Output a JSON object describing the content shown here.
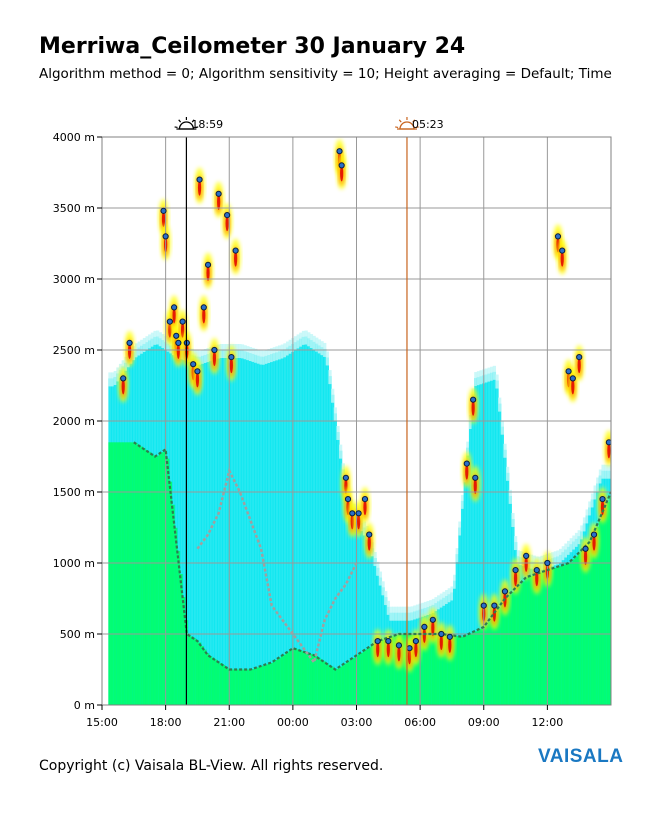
{
  "header": {
    "title": "Merriwa_Ceilometer 30 January 24",
    "subtitle": "Algorithm method = 0; Algorithm sensitivity = 10; Height averaging = Default; Time"
  },
  "footer": {
    "copyright": "Copyright (c) Vaisala BL-View. All rights reserved.",
    "logo_text": "VAISALA"
  },
  "chart_data": {
    "type": "heatmap",
    "y_unit": "m",
    "ylim": [
      0,
      4000
    ],
    "y_ticks": [
      {
        "value": 4000,
        "label": "4000 m"
      },
      {
        "value": 3500,
        "label": "3500 m"
      },
      {
        "value": 3000,
        "label": "3000 m"
      },
      {
        "value": 2500,
        "label": "2500 m"
      },
      {
        "value": 2000,
        "label": "2000 m"
      },
      {
        "value": 1500,
        "label": "1500 m"
      },
      {
        "value": 1000,
        "label": "1000 m"
      },
      {
        "value": 500,
        "label": "500 m"
      },
      {
        "value": 0,
        "label": "0 m"
      }
    ],
    "x_ticks": [
      {
        "hours": 0,
        "label": "15:00"
      },
      {
        "hours": 3,
        "label": "18:00"
      },
      {
        "hours": 6,
        "label": "21:00"
      },
      {
        "hours": 9,
        "label": "00:00"
      },
      {
        "hours": 12,
        "label": "03:00"
      },
      {
        "hours": 15,
        "label": "06:00"
      },
      {
        "hours": 18,
        "label": "09:00"
      },
      {
        "hours": 21,
        "label": "12:00"
      }
    ],
    "x_range_hours": [
      0,
      24
    ],
    "grid": true,
    "markers": [
      {
        "name": "sunset",
        "label": "18:59",
        "hours": 3.98,
        "color": "#000000"
      },
      {
        "name": "sunrise",
        "label": "05:23",
        "hours": 14.38,
        "color": "#c8641e"
      }
    ],
    "backscatter_colors": [
      "#ffffff",
      "#00e5ee",
      "#00ff66",
      "#ffff00",
      "#ff8800",
      "#e00000"
    ],
    "series": [
      {
        "layer": "aerosol_column_top",
        "hours": [
          0.5,
          1.5,
          2.5,
          3.5,
          4.5,
          5.5,
          6.5,
          7.5,
          8.5,
          9.5,
          10.5,
          11.5,
          12.5,
          13.5,
          14.5,
          15.5,
          16.5,
          17.5,
          18.5,
          19.5,
          20.5,
          21.5,
          22.5,
          23.5
        ],
        "heights_m": [
          2300,
          2500,
          2600,
          2500,
          2450,
          2500,
          2500,
          2450,
          2500,
          2600,
          2500,
          1450,
          1200,
          650,
          650,
          700,
          800,
          2300,
          2350,
          1050,
          1000,
          1050,
          1200,
          1650
        ]
      },
      {
        "layer": "cloud_base_points",
        "hours": [
          1.0,
          1.3,
          2.9,
          3.0,
          3.2,
          3.4,
          3.5,
          3.6,
          3.8,
          4.0,
          4.3,
          4.5,
          4.6,
          4.8,
          5.0,
          5.3,
          5.5,
          5.9,
          6.1,
          6.3,
          11.2,
          11.3,
          11.5,
          11.6,
          11.8,
          12.1,
          12.4,
          12.6,
          13.0,
          13.5,
          14.0,
          14.5,
          14.8,
          15.2,
          15.6,
          16.0,
          16.4,
          17.2,
          17.5,
          17.6,
          18.0,
          18.5,
          19.0,
          19.5,
          20.0,
          20.5,
          21.0,
          21.5,
          21.7,
          22.0,
          22.2,
          22.5,
          22.8,
          23.2,
          23.6,
          23.9
        ],
        "heights_m": [
          2300,
          2550,
          3480,
          3300,
          2700,
          2800,
          2600,
          2550,
          2700,
          2550,
          2400,
          2350,
          3700,
          2800,
          3100,
          2500,
          3600,
          3450,
          2450,
          3200,
          3900,
          3800,
          1600,
          1450,
          1350,
          1350,
          1450,
          1200,
          450,
          450,
          420,
          400,
          450,
          550,
          600,
          500,
          480,
          1700,
          2150,
          1600,
          700,
          700,
          800,
          950,
          1050,
          950,
          1000,
          3300,
          3200,
          2350,
          2300,
          2450,
          1100,
          1200,
          1450,
          1850
        ]
      },
      {
        "layer": "boundary_layer_trace",
        "hours": [
          1.5,
          2.0,
          2.5,
          3.0,
          4.0,
          4.5,
          5.0,
          6.0,
          7.0,
          8.0,
          9.0,
          10.0,
          11.0,
          12.0,
          13.0,
          14.0,
          15.0,
          16.0,
          17.0,
          18.0,
          19.0,
          20.0,
          21.0,
          22.0,
          23.0,
          24.0
        ],
        "heights_m": [
          1850,
          1800,
          1750,
          1800,
          500,
          450,
          350,
          250,
          250,
          300,
          400,
          350,
          250,
          350,
          450,
          500,
          500,
          500,
          480,
          550,
          750,
          900,
          950,
          1000,
          1150,
          1500
        ]
      },
      {
        "layer": "residual_layer_trace",
        "hours": [
          4.5,
          5.0,
          5.5,
          6.0,
          6.5,
          7.0,
          7.5,
          8.0,
          9.0,
          10.0,
          10.5,
          11.0,
          11.5,
          12.0
        ],
        "heights_m": [
          1100,
          1200,
          1350,
          1650,
          1500,
          1300,
          1100,
          700,
          500,
          300,
          600,
          750,
          850,
          1000
        ]
      }
    ]
  }
}
